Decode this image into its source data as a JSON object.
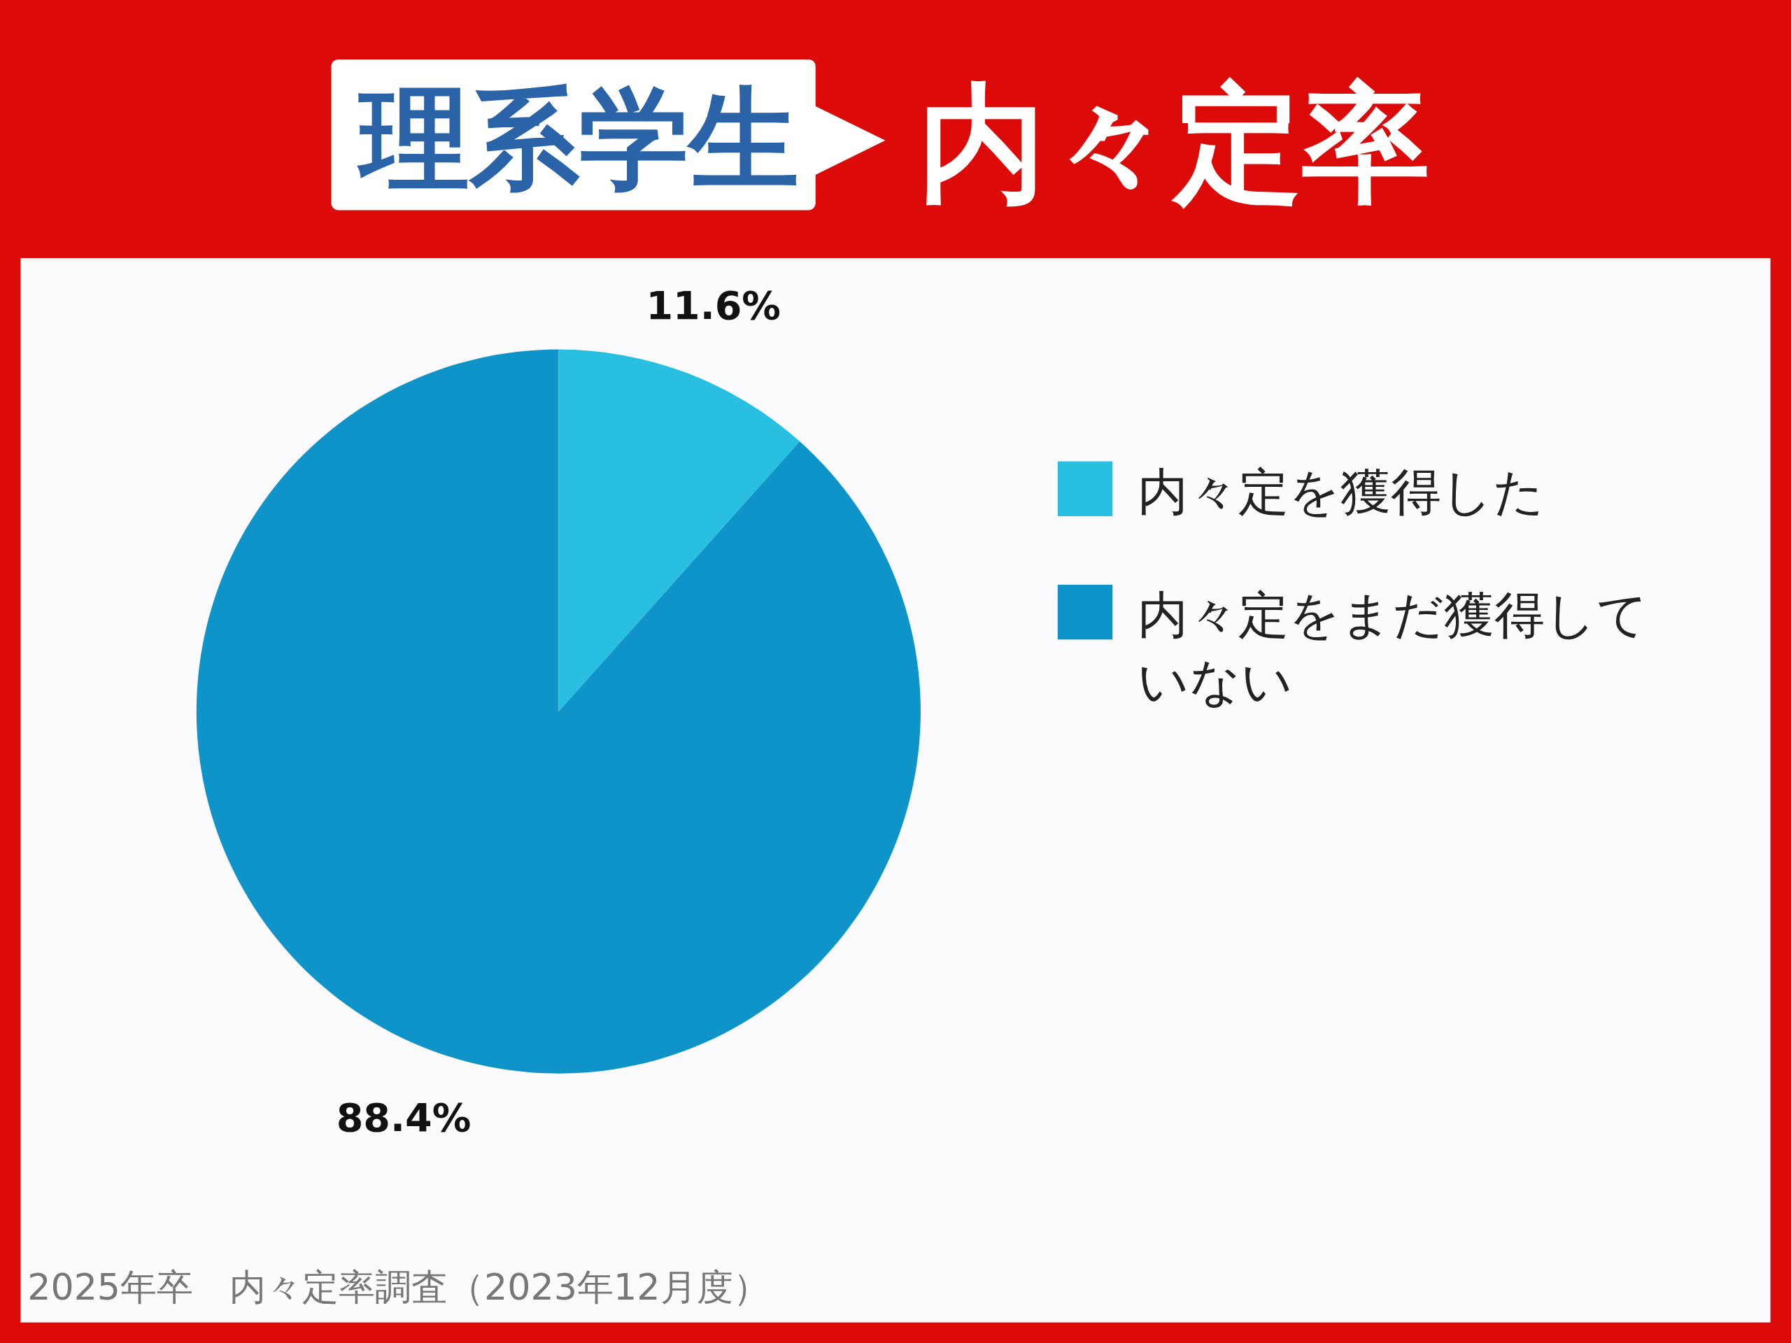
{
  "chart_data": {
    "type": "pie",
    "title": "理系学生",
    "subtitle": "内々定率",
    "categories": [
      "内々定を獲得した",
      "内々定をまだ獲得していない"
    ],
    "values": [
      11.6,
      88.4
    ],
    "colors": [
      "#29bfe0",
      "#0e94c8"
    ],
    "value_labels": [
      "11.6%",
      "88.4%"
    ],
    "legend": "right",
    "annotations": [
      "2025年卒　内々定率調査（2023年12月度）"
    ]
  }
}
